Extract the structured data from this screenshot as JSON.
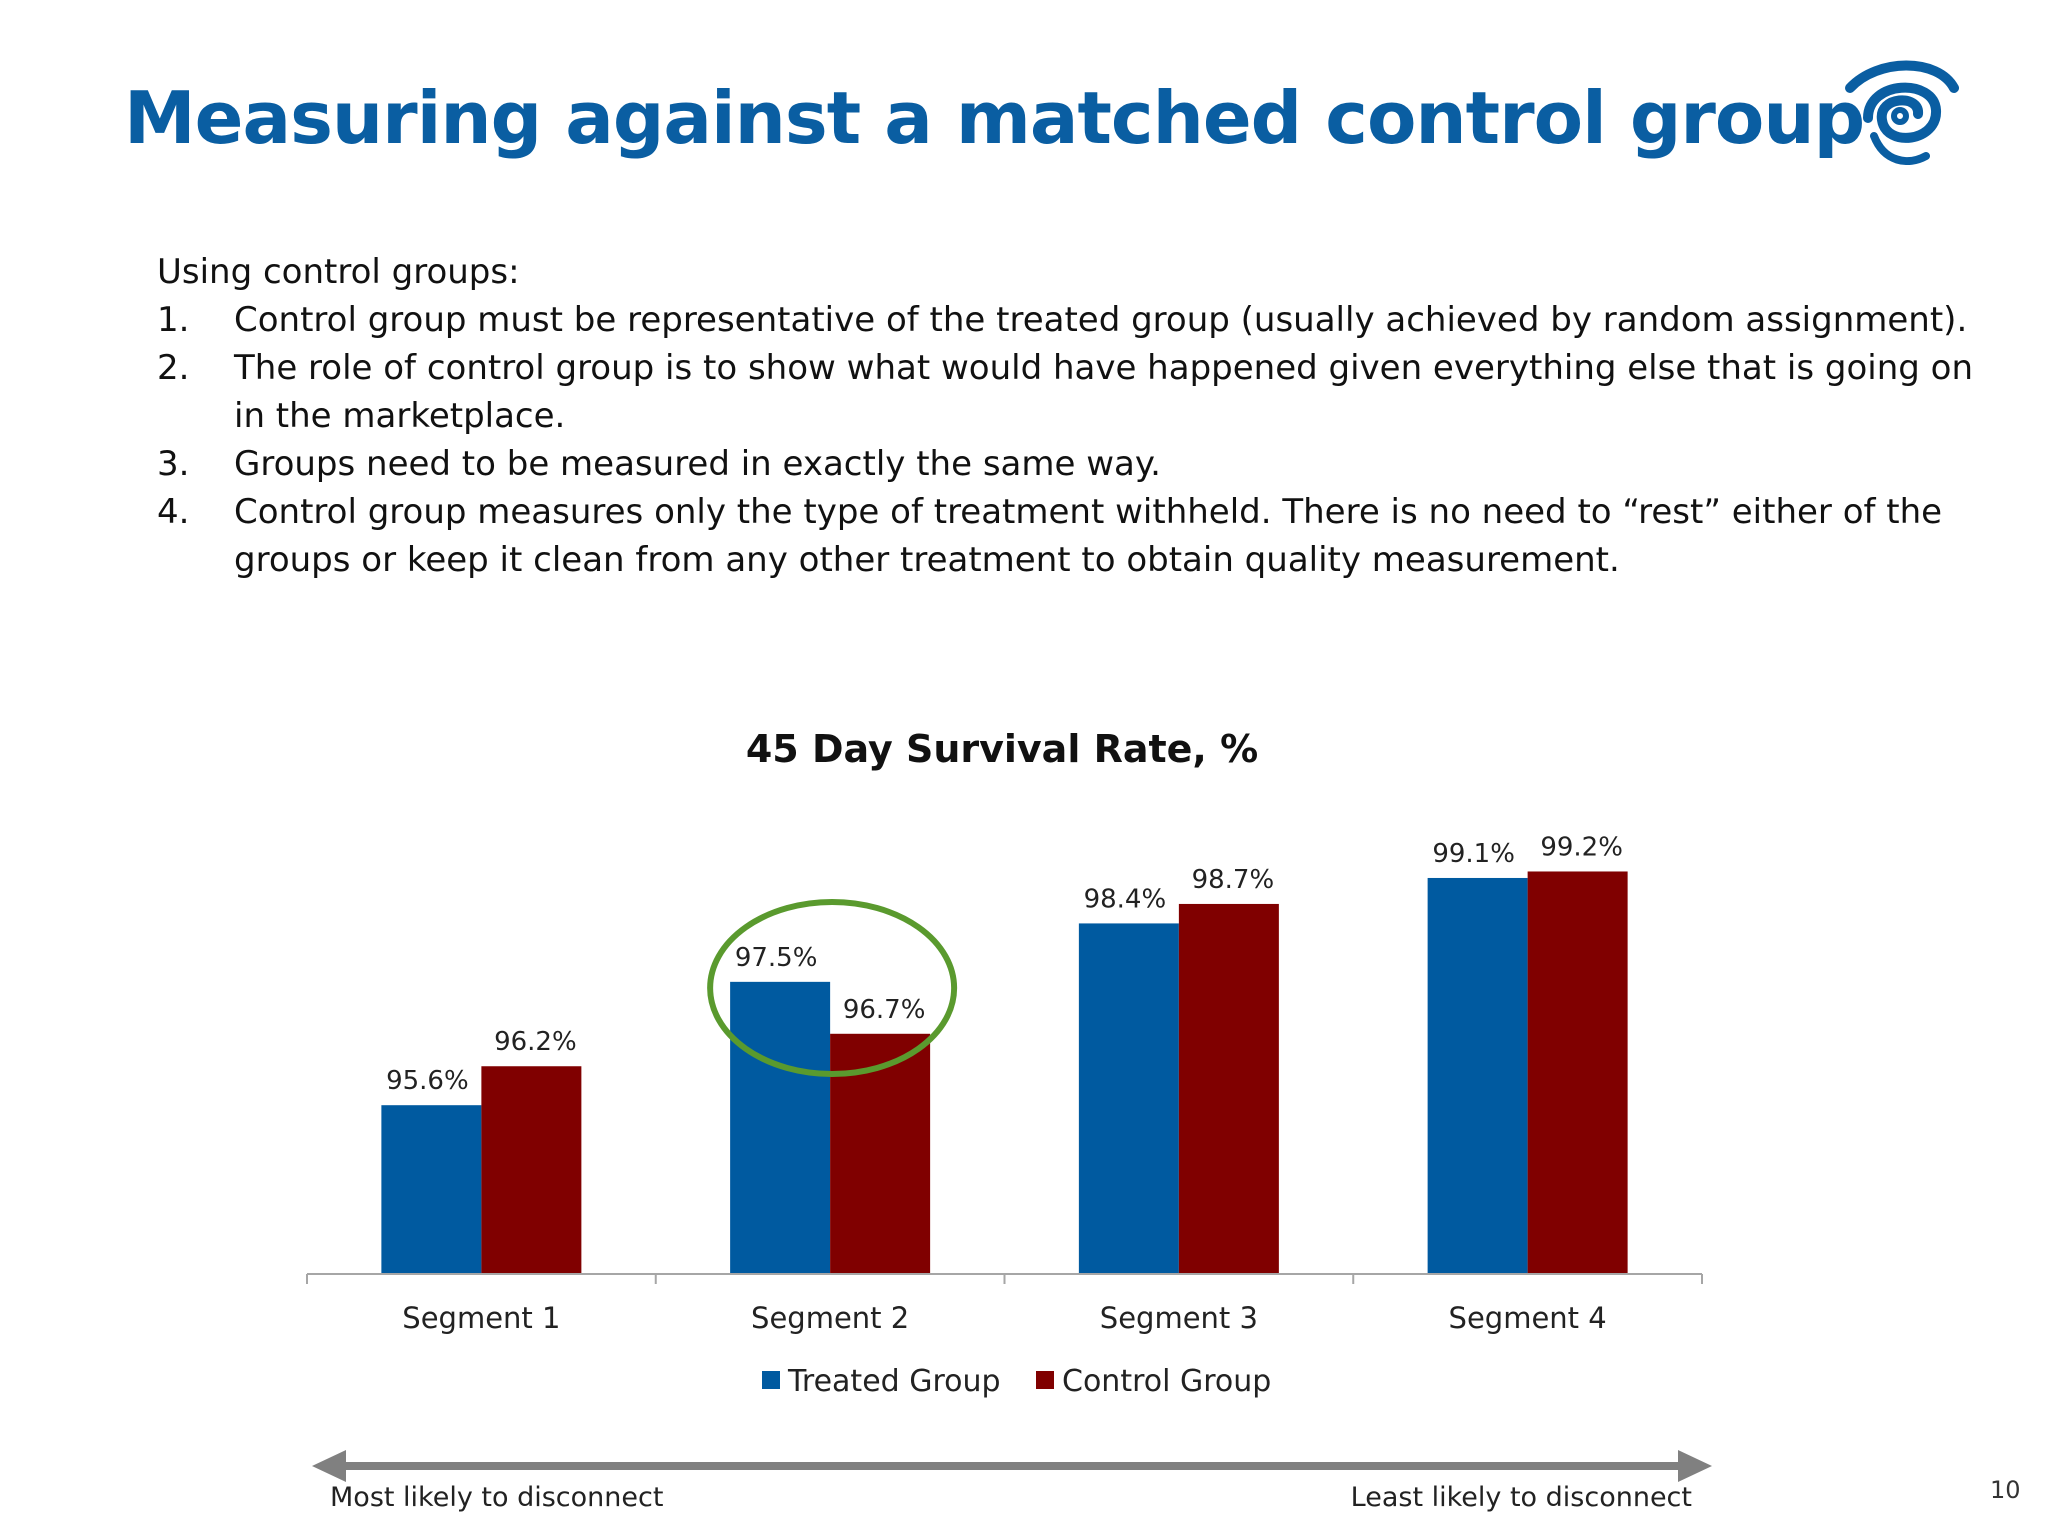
{
  "slide": {
    "title": "Measuring against a matched control group",
    "page_number": "10",
    "logo_icon": "eye-spiral-logo-icon",
    "intro": {
      "lead": "Using control groups:",
      "items": [
        {
          "num": "1.",
          "text": "Control group must be representative of the treated group (usually achieved by random assignment)."
        },
        {
          "num": "2.",
          "text": "The role of control group is to show what would have happened given everything else that is going on in the marketplace."
        },
        {
          "num": "3.",
          "text": "Groups need to be measured in exactly the same way."
        },
        {
          "num": "4.",
          "text": "Control group measures only the type of treatment withheld. There is no need to “rest” either of the groups or keep it clean from any other treatment to obtain quality measurement."
        }
      ]
    },
    "arrow": {
      "left_label": "Most likely to disconnect",
      "right_label": "Least likely to disconnect",
      "color": "#808080"
    },
    "highlight": {
      "category": "Segment 2",
      "color": "#5a9a2e"
    }
  },
  "chart_data": {
    "type": "bar",
    "title": "45 Day Survival Rate, %",
    "xlabel": "",
    "ylabel": "",
    "categories": [
      "Segment 1",
      "Segment 2",
      "Segment 3",
      "Segment 4"
    ],
    "series": [
      {
        "name": "Treated Group",
        "color": "#005aa0",
        "values": [
          95.6,
          97.5,
          98.4,
          99.1
        ],
        "labels": [
          "95.6%",
          "97.5%",
          "98.4%",
          "99.1%"
        ]
      },
      {
        "name": "Control Group",
        "color": "#800000",
        "values": [
          96.2,
          96.7,
          98.7,
          99.2
        ],
        "labels": [
          "96.2%",
          "96.7%",
          "98.7%",
          "99.2%"
        ]
      }
    ],
    "ylim": [
      93.0,
      99.5
    ],
    "grid": false,
    "legend": "bottom"
  }
}
